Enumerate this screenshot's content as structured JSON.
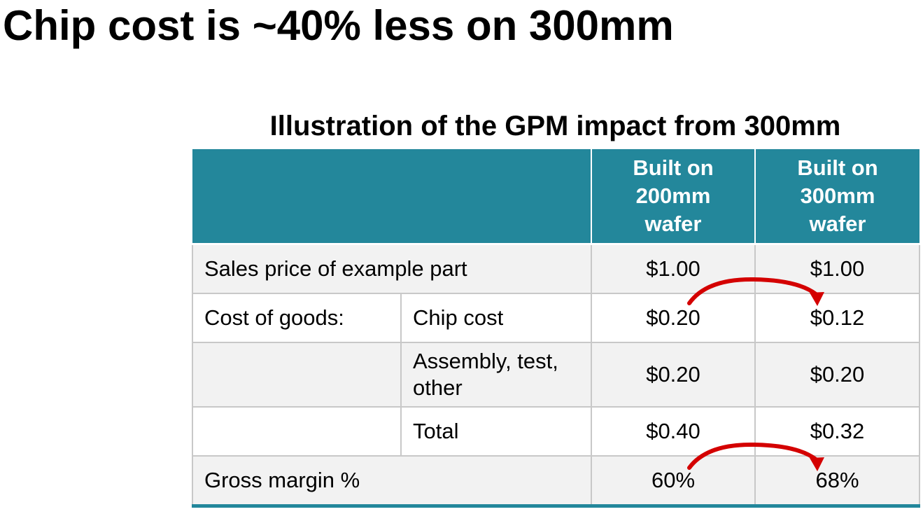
{
  "slide": {
    "title": "Chip cost is ~40% less on 300mm",
    "table_caption": "Illustration of the GPM impact from 300mm"
  },
  "table": {
    "headers": {
      "empty": "",
      "col_200mm": [
        "Built on",
        "200mm",
        "wafer"
      ],
      "col_300mm": [
        "Built on",
        "300mm",
        "wafer"
      ]
    },
    "rows": {
      "sales": {
        "label": "Sales price of example part",
        "v200": "$1.00",
        "v300": "$1.00"
      },
      "chip": {
        "group": "Cost of goods:",
        "label": "Chip cost",
        "v200": "$0.20",
        "v300": "$0.12"
      },
      "assembly": {
        "group": "",
        "label": "Assembly, test, other",
        "v200": "$0.20",
        "v300": "$0.20"
      },
      "total": {
        "group": "",
        "label": "Total",
        "v200": "$0.40",
        "v300": "$0.32"
      },
      "margin": {
        "label": "Gross margin %",
        "v200": "60%",
        "v300": "68%"
      }
    }
  },
  "colors": {
    "header_bg": "#23879b",
    "arrow": "#d40000",
    "row_shade": "#f2f2f2"
  },
  "icons": [
    "curved-arrow-icon",
    "curved-arrow-icon"
  ]
}
